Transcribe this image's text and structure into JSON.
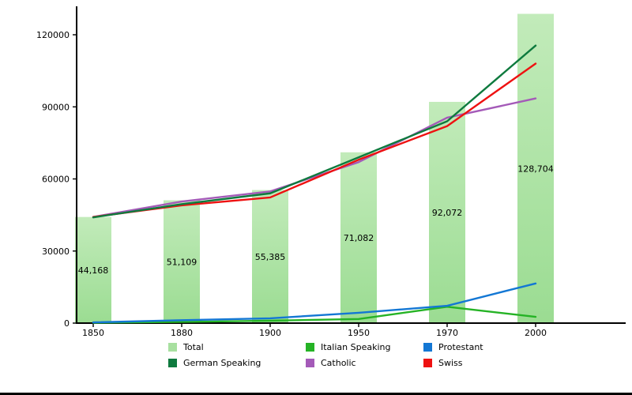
{
  "chart_data": {
    "type": "bar",
    "title": "",
    "xlabel": "",
    "ylabel": "",
    "categories": [
      "1850",
      "1880",
      "1900",
      "1950",
      "1970",
      "2000"
    ],
    "y_ticks": [
      0,
      30000,
      60000,
      90000,
      120000
    ],
    "y_tick_labels": [
      "0",
      "30000",
      "60000",
      "90000",
      "120000"
    ],
    "ylim": [
      0,
      131500
    ],
    "grid": false,
    "legend_position": "bottom",
    "bars": {
      "name": "Total",
      "color_top": "#c2ebba",
      "color_bottom": "#9bdc92",
      "values": [
        44168,
        51109,
        55385,
        71082,
        92072,
        128704
      ],
      "labels": [
        "44,168",
        "51,109",
        "55,385",
        "71,082",
        "92,072",
        "128,704"
      ]
    },
    "series": [
      {
        "name": "Italian Speaking",
        "color": "#25b325",
        "values": [
          150,
          500,
          1000,
          1700,
          6800,
          2600
        ]
      },
      {
        "name": "Protestant",
        "color": "#1377d4",
        "values": [
          300,
          1200,
          2000,
          4300,
          7200,
          16500
        ]
      },
      {
        "name": "Catholic",
        "color": "#a45ab8",
        "values": [
          44200,
          50600,
          54800,
          67000,
          85500,
          93500
        ]
      },
      {
        "name": "Swiss",
        "color": "#ee1111",
        "values": [
          44168,
          49000,
          52300,
          68000,
          82000,
          108000
        ]
      },
      {
        "name": "German Speaking",
        "color": "#0e7a3e",
        "values": [
          44000,
          49500,
          54000,
          69000,
          84000,
          115500
        ]
      }
    ],
    "legend": [
      {
        "label": "Total",
        "color": "#a8e0a0"
      },
      {
        "label": "Italian Speaking",
        "color": "#25b325"
      },
      {
        "label": "Protestant",
        "color": "#1377d4"
      },
      {
        "label": "German Speaking",
        "color": "#0e7a3e"
      },
      {
        "label": "Catholic",
        "color": "#a45ab8"
      },
      {
        "label": "Swiss",
        "color": "#ee1111"
      }
    ]
  }
}
